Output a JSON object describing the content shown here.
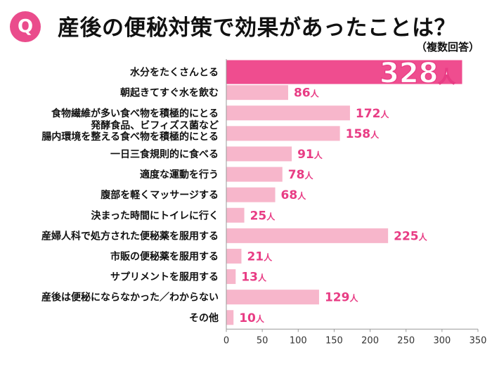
{
  "header": {
    "badge": "Q",
    "title": "産後の便秘対策で効果があったことは？",
    "subtitle": "（複数回答）"
  },
  "colors": {
    "accent": "#ea4c8c",
    "bar": "#f7b6cb",
    "bar_highlight": "#ef4d8f",
    "value_text": "#e83c84"
  },
  "chart_data": {
    "type": "bar",
    "orientation": "horizontal",
    "categories": [
      [
        "水分をたくさんとる"
      ],
      [
        "朝起きてすぐ水を飲む"
      ],
      [
        "食物繊維が多い食べ物を積極的にとる"
      ],
      [
        "発酵食品、ビフィズス菌など",
        "腸内環境を整える食べ物を積極的にとる"
      ],
      [
        "一日三食規則的に食べる"
      ],
      [
        "適度な運動を行う"
      ],
      [
        "腹部を軽くマッサージする"
      ],
      [
        "決まった時間にトイレに行く"
      ],
      [
        "産婦人科で処方された便秘薬を服用する"
      ],
      [
        "市販の便秘薬を服用する"
      ],
      [
        "サプリメントを服用する"
      ],
      [
        "産後は便秘にならなかった／わからない"
      ],
      [
        "その他"
      ]
    ],
    "values": [
      328,
      86,
      172,
      158,
      91,
      78,
      68,
      25,
      225,
      21,
      13,
      129,
      10
    ],
    "value_labels": [
      "328",
      "86",
      "172",
      "158",
      "91",
      "78",
      "68",
      "25",
      "225",
      "21",
      "13",
      "129",
      "10"
    ],
    "unit": "人",
    "highlight_index": 0,
    "xlim": [
      0,
      350
    ],
    "xticks": [
      "0",
      "50",
      "100",
      "150",
      "200",
      "250",
      "300",
      "350"
    ],
    "grid": false
  }
}
